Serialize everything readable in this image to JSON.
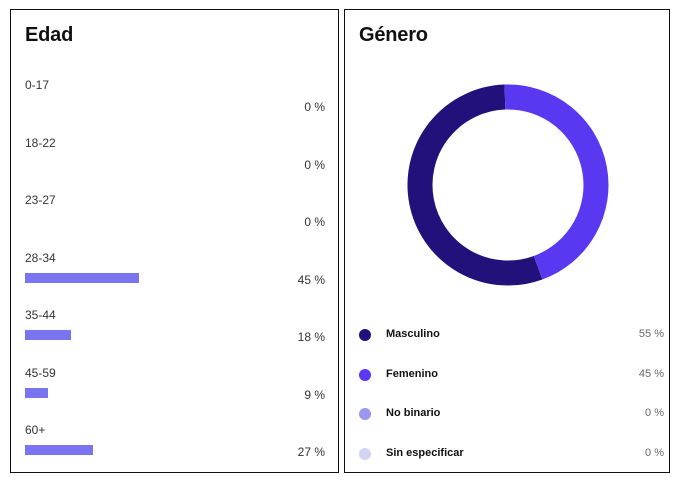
{
  "chart_data": [
    {
      "type": "bar",
      "orientation": "horizontal",
      "title": "Edad",
      "categories": [
        "0-17",
        "18-22",
        "23-27",
        "28-34",
        "35-44",
        "45-59",
        "60+"
      ],
      "values": [
        0,
        0,
        0,
        45,
        18,
        9,
        27
      ],
      "value_labels": [
        "0 %",
        "0 %",
        "0 %",
        "45 %",
        "18 %",
        "9 %",
        "27 %"
      ],
      "color": "#7b74f0"
    },
    {
      "type": "pie",
      "style": "donut",
      "title": "Género",
      "categories": [
        "Masculino",
        "Femenino",
        "No binario",
        "Sin especificar"
      ],
      "values": [
        55,
        45,
        0,
        0
      ],
      "value_labels": [
        "55 %",
        "45 %",
        "0 %",
        "0 %"
      ],
      "colors": [
        "#22117a",
        "#5a37f0",
        "#9b96ee",
        "#d3d3f5"
      ],
      "legend": "bottom"
    }
  ]
}
